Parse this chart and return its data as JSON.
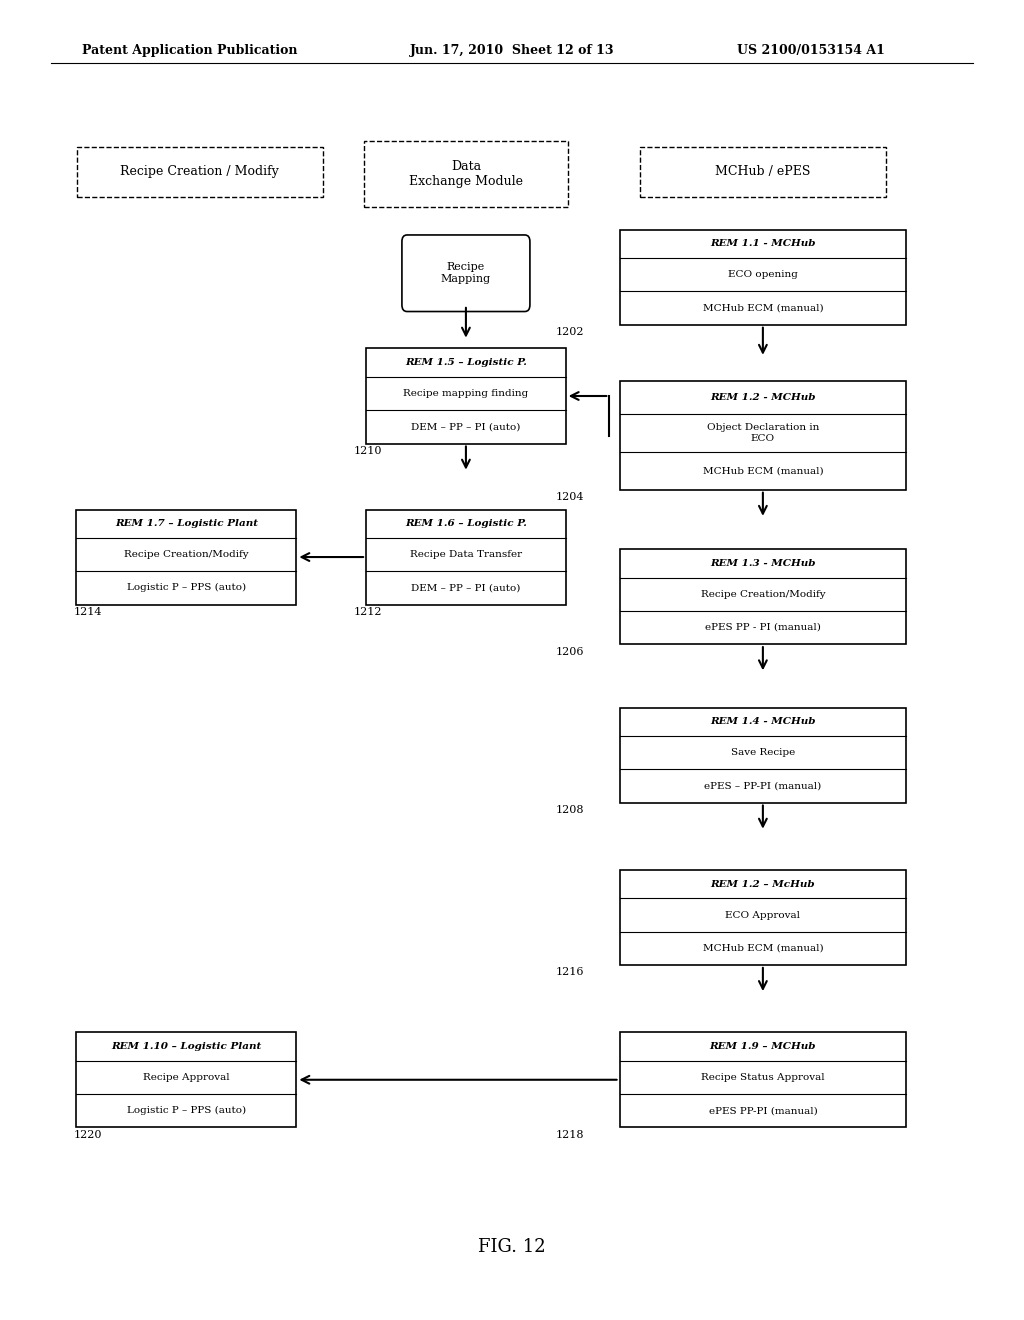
{
  "header_left": "Patent Application Publication",
  "header_mid": "Jun. 17, 2010  Sheet 12 of 13",
  "header_right": "US 2100/0153154 A1",
  "footer": "FIG. 12",
  "background": "#ffffff"
}
